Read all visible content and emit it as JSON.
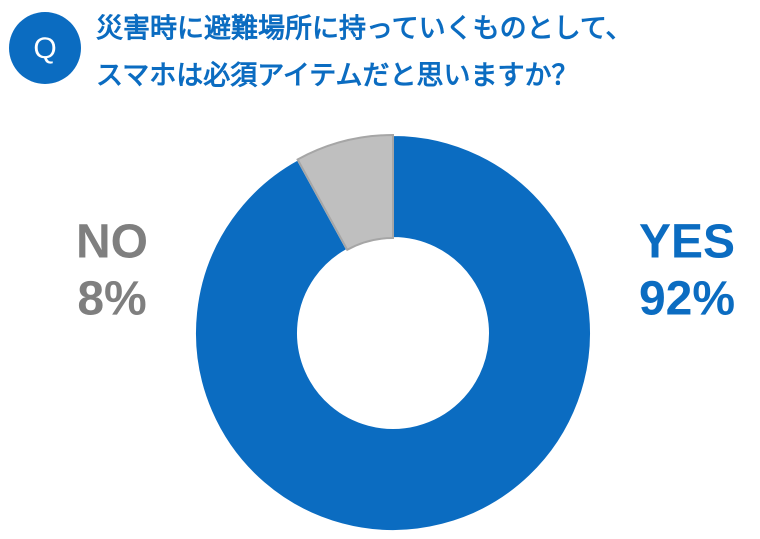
{
  "chart_data": {
    "type": "pie",
    "badge": "Q",
    "title": [
      "災害時に避難場所に持っていくものとして、",
      "スマホは必須アイテムだと思いますか？"
    ],
    "categories": [
      "YES",
      "NO"
    ],
    "values": [
      92,
      8
    ],
    "value_labels": [
      "92%",
      "8%"
    ],
    "colors": [
      "#0b6cc1",
      "#bfbfbf"
    ],
    "label_colors": [
      "#0b6cc1",
      "#7f7f7f"
    ],
    "donut": true
  }
}
